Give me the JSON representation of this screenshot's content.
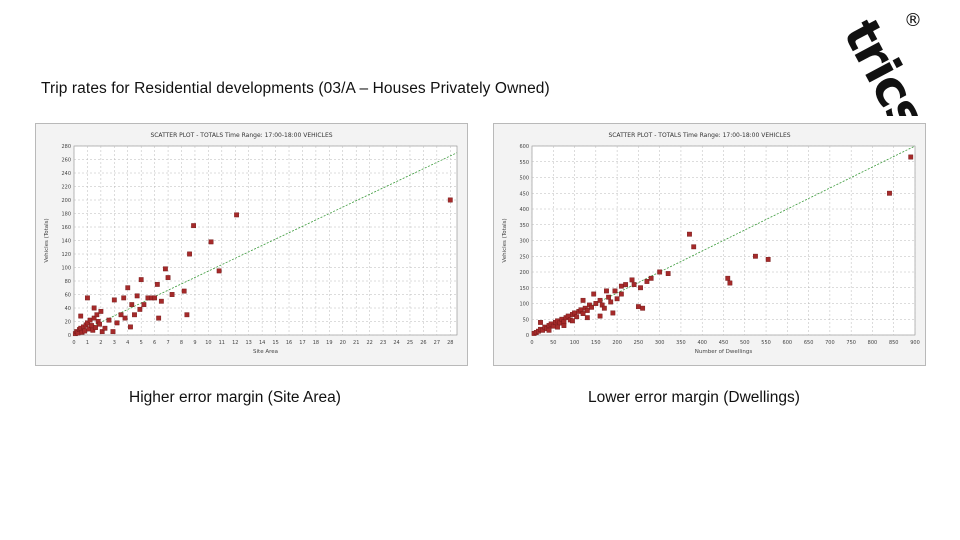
{
  "slide": {
    "title": "Trip rates for Residential developments (03/A – Houses Privately Owned)",
    "logo_text": "trics",
    "logo_mark": "®"
  },
  "colors": {
    "point": "#a52a2a",
    "trend": "#3a9a3a",
    "grid": "#b8b8b8",
    "panel_bg": "#f3f3f3"
  },
  "chart_data": [
    {
      "type": "scatter",
      "title": "SCATTER PLOT - TOTALS",
      "subtitle": "Time Range: 17:00-18:00",
      "mode": "VEHICLES",
      "xlabel": "Site Area",
      "ylabel": "Vehicles (Totals)",
      "caption": "Higher error margin (Site Area)",
      "xlim": [
        0,
        28.5
      ],
      "ylim": [
        0,
        280
      ],
      "xticks": [
        0,
        1,
        2,
        3,
        4,
        5,
        6,
        7,
        8,
        9,
        10,
        11,
        12,
        13,
        14,
        15,
        16,
        17,
        18,
        19,
        20,
        21,
        22,
        23,
        24,
        25,
        26,
        27,
        28
      ],
      "yticks": [
        0,
        20,
        40,
        60,
        80,
        100,
        120,
        140,
        160,
        180,
        200,
        220,
        240,
        260,
        280
      ],
      "trend": [
        [
          0,
          0
        ],
        [
          28.5,
          270
        ]
      ],
      "points": [
        [
          0.1,
          2
        ],
        [
          0.2,
          5
        ],
        [
          0.3,
          3
        ],
        [
          0.4,
          8
        ],
        [
          0.5,
          10
        ],
        [
          0.6,
          4
        ],
        [
          0.7,
          12
        ],
        [
          0.8,
          6
        ],
        [
          0.9,
          15
        ],
        [
          1.0,
          18
        ],
        [
          1.1,
          9
        ],
        [
          1.2,
          22
        ],
        [
          1.3,
          14
        ],
        [
          1.4,
          7
        ],
        [
          1.5,
          25
        ],
        [
          1.6,
          11
        ],
        [
          1.7,
          30
        ],
        [
          1.8,
          20
        ],
        [
          1.9,
          16
        ],
        [
          2.0,
          35
        ],
        [
          2.1,
          5
        ],
        [
          1.0,
          55
        ],
        [
          0.5,
          28
        ],
        [
          1.5,
          40
        ],
        [
          2.3,
          10
        ],
        [
          2.6,
          22
        ],
        [
          2.9,
          5
        ],
        [
          3.0,
          52
        ],
        [
          3.2,
          18
        ],
        [
          3.5,
          30
        ],
        [
          3.7,
          55
        ],
        [
          3.8,
          25
        ],
        [
          4.0,
          70
        ],
        [
          4.2,
          12
        ],
        [
          4.3,
          45
        ],
        [
          4.5,
          30
        ],
        [
          4.7,
          58
        ],
        [
          4.9,
          38
        ],
        [
          5.0,
          82
        ],
        [
          5.2,
          45
        ],
        [
          5.5,
          55
        ],
        [
          5.8,
          55
        ],
        [
          6.0,
          55
        ],
        [
          6.2,
          75
        ],
        [
          6.5,
          50
        ],
        [
          6.8,
          98
        ],
        [
          7.0,
          85
        ],
        [
          7.3,
          60
        ],
        [
          8.2,
          65
        ],
        [
          8.4,
          30
        ],
        [
          8.6,
          120
        ],
        [
          8.9,
          162
        ],
        [
          10.2,
          138
        ],
        [
          10.8,
          95
        ],
        [
          12.1,
          178
        ],
        [
          28.0,
          200
        ],
        [
          6.3,
          25
        ]
      ]
    },
    {
      "type": "scatter",
      "title": "SCATTER PLOT - TOTALS",
      "subtitle": "Time Range: 17:00-18:00",
      "mode": "VEHICLES",
      "xlabel": "Number of Dwellings",
      "ylabel": "Vehicles (Totals)",
      "caption": "Lower error margin (Dwellings)",
      "xlim": [
        0,
        900
      ],
      "ylim": [
        0,
        600
      ],
      "xticks": [
        0,
        50,
        100,
        150,
        200,
        250,
        300,
        350,
        400,
        450,
        500,
        550,
        600,
        650,
        700,
        750,
        800,
        850,
        900
      ],
      "yticks": [
        0,
        50,
        100,
        150,
        200,
        250,
        300,
        350,
        400,
        450,
        500,
        550,
        600
      ],
      "trend": [
        [
          0,
          0
        ],
        [
          900,
          600
        ]
      ],
      "points": [
        [
          5,
          5
        ],
        [
          10,
          8
        ],
        [
          15,
          12
        ],
        [
          20,
          18
        ],
        [
          25,
          15
        ],
        [
          30,
          25
        ],
        [
          35,
          20
        ],
        [
          40,
          30
        ],
        [
          45,
          35
        ],
        [
          50,
          28
        ],
        [
          55,
          40
        ],
        [
          60,
          45
        ],
        [
          65,
          38
        ],
        [
          70,
          50
        ],
        [
          75,
          42
        ],
        [
          80,
          55
        ],
        [
          85,
          60
        ],
        [
          90,
          48
        ],
        [
          95,
          65
        ],
        [
          100,
          70
        ],
        [
          105,
          58
        ],
        [
          110,
          75
        ],
        [
          115,
          80
        ],
        [
          120,
          68
        ],
        [
          125,
          85
        ],
        [
          130,
          78
        ],
        [
          135,
          95
        ],
        [
          140,
          88
        ],
        [
          150,
          100
        ],
        [
          160,
          110
        ],
        [
          165,
          95
        ],
        [
          170,
          85
        ],
        [
          180,
          120
        ],
        [
          185,
          105
        ],
        [
          195,
          140
        ],
        [
          200,
          115
        ],
        [
          210,
          155
        ],
        [
          220,
          160
        ],
        [
          235,
          175
        ],
        [
          250,
          90
        ],
        [
          255,
          150
        ],
        [
          260,
          85
        ],
        [
          270,
          170
        ],
        [
          280,
          180
        ],
        [
          300,
          200
        ],
        [
          320,
          195
        ],
        [
          370,
          320
        ],
        [
          380,
          280
        ],
        [
          460,
          180
        ],
        [
          465,
          165
        ],
        [
          525,
          250
        ],
        [
          555,
          240
        ],
        [
          840,
          450
        ],
        [
          890,
          565
        ],
        [
          20,
          40
        ],
        [
          40,
          15
        ],
        [
          60,
          25
        ],
        [
          75,
          30
        ],
        [
          95,
          45
        ],
        [
          130,
          55
        ],
        [
          160,
          60
        ],
        [
          190,
          70
        ],
        [
          210,
          130
        ],
        [
          240,
          160
        ],
        [
          120,
          110
        ],
        [
          145,
          130
        ],
        [
          175,
          140
        ]
      ]
    }
  ]
}
